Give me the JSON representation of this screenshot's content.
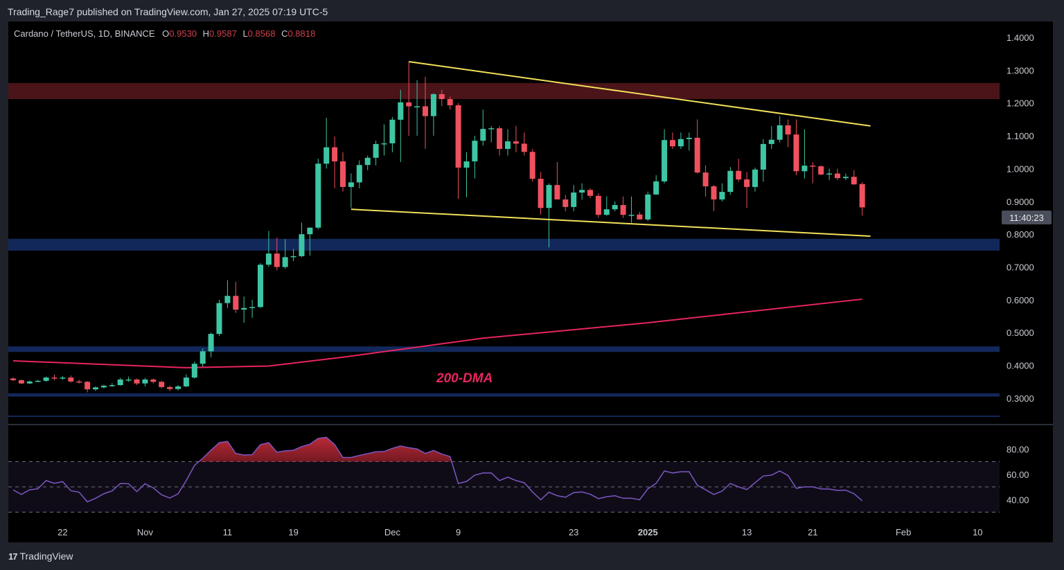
{
  "header": {
    "publisher_line": "Trading_Rage7 published on TradingView.com, Jan 27, 2025 07:19 UTC-5"
  },
  "footer": {
    "brand": "TradingView",
    "logo_icon": "tradingview-logo-icon"
  },
  "colors": {
    "up": "#3ec6a4",
    "down": "#f0515f",
    "trendline": "#f2e15a",
    "ma": "#e8255f",
    "rsi": "#7e57c2",
    "resistance_zone": "#4a1419",
    "support_zone": "#13285a",
    "background": "#000000"
  },
  "chart_data": {
    "type": "candlestick",
    "title": "Cardano / TetherUS, 1D, BINANCE",
    "ohlc": {
      "o_label": "O",
      "o": "0.9530",
      "h_label": "H",
      "h": "0.9587",
      "l_label": "L",
      "l": "0.8568",
      "c_label": "C",
      "c": "0.8818"
    },
    "countdown": "11:40:23",
    "ylim": [
      0.24,
      1.42
    ],
    "y_ticks": [
      {
        "value": 1.4,
        "label": "1.4000"
      },
      {
        "value": 1.3,
        "label": "1.3000"
      },
      {
        "value": 1.2,
        "label": "1.2000"
      },
      {
        "value": 1.1,
        "label": "1.1000"
      },
      {
        "value": 1.0,
        "label": "1.0000"
      },
      {
        "value": 0.9,
        "label": "0.9000"
      },
      {
        "value": 0.8,
        "label": "0.8000"
      },
      {
        "value": 0.7,
        "label": "0.7000"
      },
      {
        "value": 0.6,
        "label": "0.6000"
      },
      {
        "value": 0.5,
        "label": "0.5000"
      },
      {
        "value": 0.4,
        "label": "0.4000"
      },
      {
        "value": 0.3,
        "label": "0.3000"
      }
    ],
    "x_ticks": [
      {
        "date": "2024-10-22",
        "label": "22"
      },
      {
        "date": "2024-11-01",
        "label": "Nov"
      },
      {
        "date": "2024-11-11",
        "label": "11"
      },
      {
        "date": "2024-11-19",
        "label": "19"
      },
      {
        "date": "2024-12-01",
        "label": "Dec"
      },
      {
        "date": "2024-12-09",
        "label": "9"
      },
      {
        "date": "2024-12-23",
        "label": "23"
      },
      {
        "date": "2025-01-01",
        "label": "2025",
        "bold": true
      },
      {
        "date": "2025-01-13",
        "label": "13"
      },
      {
        "date": "2025-01-21",
        "label": "21"
      },
      {
        "date": "2025-02-01",
        "label": "Feb"
      },
      {
        "date": "2025-02-10",
        "label": "10"
      }
    ],
    "candles_columns": [
      "date",
      "open",
      "high",
      "low",
      "close"
    ],
    "candles": [
      [
        "2024-10-16",
        0.36,
        0.364,
        0.352,
        0.355
      ],
      [
        "2024-10-17",
        0.355,
        0.357,
        0.343,
        0.345
      ],
      [
        "2024-10-18",
        0.345,
        0.354,
        0.343,
        0.351
      ],
      [
        "2024-10-19",
        0.351,
        0.356,
        0.349,
        0.353
      ],
      [
        "2024-10-20",
        0.353,
        0.366,
        0.35,
        0.363
      ],
      [
        "2024-10-21",
        0.363,
        0.372,
        0.355,
        0.36
      ],
      [
        "2024-10-22",
        0.36,
        0.368,
        0.356,
        0.363
      ],
      [
        "2024-10-23",
        0.363,
        0.369,
        0.348,
        0.351
      ],
      [
        "2024-10-24",
        0.351,
        0.356,
        0.345,
        0.35
      ],
      [
        "2024-10-25",
        0.35,
        0.352,
        0.318,
        0.327
      ],
      [
        "2024-10-26",
        0.327,
        0.336,
        0.322,
        0.333
      ],
      [
        "2024-10-27",
        0.333,
        0.341,
        0.33,
        0.338
      ],
      [
        "2024-10-28",
        0.338,
        0.346,
        0.334,
        0.34
      ],
      [
        "2024-10-29",
        0.34,
        0.362,
        0.338,
        0.357
      ],
      [
        "2024-10-30",
        0.357,
        0.366,
        0.35,
        0.357
      ],
      [
        "2024-10-31",
        0.357,
        0.36,
        0.34,
        0.345
      ],
      [
        "2024-11-01",
        0.345,
        0.362,
        0.336,
        0.357
      ],
      [
        "2024-11-02",
        0.357,
        0.36,
        0.345,
        0.35
      ],
      [
        "2024-11-03",
        0.35,
        0.353,
        0.33,
        0.334
      ],
      [
        "2024-11-04",
        0.334,
        0.338,
        0.322,
        0.328
      ],
      [
        "2024-11-05",
        0.328,
        0.34,
        0.324,
        0.336
      ],
      [
        "2024-11-06",
        0.336,
        0.373,
        0.334,
        0.363
      ],
      [
        "2024-11-07",
        0.363,
        0.412,
        0.36,
        0.405
      ],
      [
        "2024-11-08",
        0.405,
        0.452,
        0.396,
        0.443
      ],
      [
        "2024-11-09",
        0.443,
        0.5,
        0.425,
        0.496
      ],
      [
        "2024-11-10",
        0.496,
        0.6,
        0.49,
        0.59
      ],
      [
        "2024-11-11",
        0.59,
        0.66,
        0.575,
        0.612
      ],
      [
        "2024-11-12",
        0.612,
        0.655,
        0.56,
        0.57
      ],
      [
        "2024-11-13",
        0.57,
        0.61,
        0.53,
        0.575
      ],
      [
        "2024-11-14",
        0.575,
        0.6,
        0.545,
        0.578
      ],
      [
        "2024-11-15",
        0.578,
        0.712,
        0.575,
        0.707
      ],
      [
        "2024-11-16",
        0.707,
        0.81,
        0.7,
        0.741
      ],
      [
        "2024-11-17",
        0.741,
        0.79,
        0.69,
        0.7
      ],
      [
        "2024-11-18",
        0.7,
        0.785,
        0.695,
        0.73
      ],
      [
        "2024-11-19",
        0.73,
        0.755,
        0.718,
        0.733
      ],
      [
        "2024-11-20",
        0.733,
        0.835,
        0.73,
        0.8
      ],
      [
        "2024-11-21",
        0.8,
        0.82,
        0.735,
        0.82
      ],
      [
        "2024-11-22",
        0.82,
        1.03,
        0.815,
        1.015
      ],
      [
        "2024-11-23",
        1.015,
        1.155,
        1.0,
        1.065
      ],
      [
        "2024-11-24",
        1.065,
        1.098,
        0.94,
        1.022
      ],
      [
        "2024-11-25",
        1.022,
        1.05,
        0.93,
        0.944
      ],
      [
        "2024-11-26",
        0.944,
        0.985,
        0.88,
        0.958
      ],
      [
        "2024-11-27",
        0.958,
        1.025,
        0.94,
        1.011
      ],
      [
        "2024-11-28",
        1.011,
        1.04,
        0.995,
        1.033
      ],
      [
        "2024-11-29",
        1.033,
        1.085,
        1.01,
        1.075
      ],
      [
        "2024-11-30",
        1.075,
        1.135,
        1.04,
        1.077
      ],
      [
        "2024-12-01",
        1.077,
        1.157,
        1.05,
        1.149
      ],
      [
        "2024-12-02",
        1.149,
        1.24,
        1.02,
        1.202
      ],
      [
        "2024-12-03",
        1.202,
        1.326,
        1.1,
        1.19
      ],
      [
        "2024-12-04",
        1.19,
        1.27,
        1.1,
        1.19
      ],
      [
        "2024-12-05",
        1.19,
        1.28,
        1.06,
        1.16
      ],
      [
        "2024-12-06",
        1.16,
        1.23,
        1.1,
        1.227
      ],
      [
        "2024-12-07",
        1.227,
        1.24,
        1.19,
        1.212
      ],
      [
        "2024-12-08",
        1.212,
        1.22,
        1.18,
        1.193
      ],
      [
        "2024-12-09",
        1.193,
        1.2,
        0.908,
        1.003
      ],
      [
        "2024-12-10",
        1.003,
        1.05,
        0.913,
        1.022
      ],
      [
        "2024-12-11",
        1.022,
        1.1,
        0.97,
        1.085
      ],
      [
        "2024-12-12",
        1.085,
        1.18,
        1.07,
        1.121
      ],
      [
        "2024-12-13",
        1.121,
        1.13,
        1.08,
        1.123
      ],
      [
        "2024-12-14",
        1.123,
        1.13,
        1.04,
        1.06
      ],
      [
        "2024-12-15",
        1.06,
        1.12,
        1.04,
        1.083
      ],
      [
        "2024-12-16",
        1.083,
        1.13,
        1.05,
        1.076
      ],
      [
        "2024-12-17",
        1.076,
        1.11,
        1.04,
        1.051
      ],
      [
        "2024-12-18",
        1.051,
        1.06,
        0.96,
        0.969
      ],
      [
        "2024-12-19",
        0.969,
        0.99,
        0.86,
        0.88
      ],
      [
        "2024-12-20",
        0.88,
        0.955,
        0.76,
        0.95
      ],
      [
        "2024-12-21",
        0.95,
        1.02,
        0.91,
        0.906
      ],
      [
        "2024-12-22",
        0.906,
        0.92,
        0.87,
        0.883
      ],
      [
        "2024-12-23",
        0.883,
        0.95,
        0.87,
        0.927
      ],
      [
        "2024-12-24",
        0.927,
        0.955,
        0.905,
        0.935
      ],
      [
        "2024-12-25",
        0.935,
        0.94,
        0.91,
        0.917
      ],
      [
        "2024-12-26",
        0.917,
        0.925,
        0.85,
        0.859
      ],
      [
        "2024-12-27",
        0.859,
        0.915,
        0.856,
        0.876
      ],
      [
        "2024-12-28",
        0.876,
        0.9,
        0.87,
        0.889
      ],
      [
        "2024-12-29",
        0.889,
        0.915,
        0.85,
        0.859
      ],
      [
        "2024-12-30",
        0.859,
        0.915,
        0.835,
        0.859
      ],
      [
        "2024-12-31",
        0.86,
        0.868,
        0.845,
        0.845
      ],
      [
        "2025-01-01",
        0.845,
        0.93,
        0.84,
        0.921
      ],
      [
        "2025-01-02",
        0.921,
        0.98,
        0.92,
        0.961
      ],
      [
        "2025-01-03",
        0.961,
        1.12,
        0.955,
        1.087
      ],
      [
        "2025-01-04",
        1.087,
        1.11,
        1.06,
        1.068
      ],
      [
        "2025-01-05",
        1.068,
        1.11,
        1.06,
        1.09
      ],
      [
        "2025-01-06",
        1.09,
        1.11,
        1.055,
        1.094
      ],
      [
        "2025-01-07",
        1.094,
        1.15,
        0.985,
        0.988
      ],
      [
        "2025-01-08",
        0.988,
        1.01,
        0.915,
        0.946
      ],
      [
        "2025-01-09",
        0.946,
        0.95,
        0.87,
        0.906
      ],
      [
        "2025-01-10",
        0.906,
        0.955,
        0.9,
        0.929
      ],
      [
        "2025-01-11",
        0.929,
        1.005,
        0.92,
        0.993
      ],
      [
        "2025-01-12",
        0.993,
        1.03,
        0.96,
        0.967
      ],
      [
        "2025-01-13",
        0.967,
        0.99,
        0.88,
        0.944
      ],
      [
        "2025-01-14",
        0.944,
        1.003,
        0.93,
        0.997
      ],
      [
        "2025-01-15",
        0.997,
        1.09,
        0.96,
        1.075
      ],
      [
        "2025-01-16",
        1.075,
        1.13,
        1.06,
        1.088
      ],
      [
        "2025-01-17",
        1.088,
        1.16,
        1.08,
        1.132
      ],
      [
        "2025-01-18",
        1.132,
        1.15,
        1.065,
        1.104
      ],
      [
        "2025-01-19",
        1.104,
        1.15,
        0.98,
        0.992
      ],
      [
        "2025-01-20",
        0.992,
        1.12,
        0.97,
        1.009
      ],
      [
        "2025-01-21",
        1.009,
        1.02,
        0.955,
        1.007
      ],
      [
        "2025-01-22",
        1.007,
        1.01,
        0.98,
        0.982
      ],
      [
        "2025-01-23",
        0.982,
        1.0,
        0.965,
        0.985
      ],
      [
        "2025-01-24",
        0.985,
        1.0,
        0.965,
        0.971
      ],
      [
        "2025-01-25",
        0.971,
        0.985,
        0.965,
        0.975
      ],
      [
        "2025-01-26",
        0.975,
        0.995,
        0.95,
        0.952
      ],
      [
        "2025-01-27",
        0.953,
        0.9587,
        0.8568,
        0.8818
      ]
    ],
    "ma200": {
      "label": "200-DMA",
      "points": [
        [
          "2024-10-16",
          0.414
        ],
        [
          "2024-11-06",
          0.393
        ],
        [
          "2024-11-16",
          0.398
        ],
        [
          "2024-11-25",
          0.425
        ],
        [
          "2024-12-12",
          0.483
        ],
        [
          "2025-01-01",
          0.53
        ],
        [
          "2025-01-27",
          0.602
        ]
      ]
    },
    "trendlines": [
      {
        "from": [
          "2024-12-03",
          1.326
        ],
        "to": [
          "2025-01-28",
          1.13
        ]
      },
      {
        "from": [
          "2024-11-26",
          0.876
        ],
        "to": [
          "2025-01-28",
          0.794
        ]
      }
    ],
    "zones": [
      {
        "kind": "resistance",
        "top": 1.261,
        "bottom": 1.212
      },
      {
        "kind": "support",
        "top": 0.786,
        "bottom": 0.75
      },
      {
        "kind": "support",
        "top": 0.458,
        "bottom": 0.441
      },
      {
        "kind": "support",
        "top": 0.315,
        "bottom": 0.305
      }
    ],
    "rsi": {
      "ticks": [
        {
          "value": 80,
          "label": "80.00"
        },
        {
          "value": 60,
          "label": "60.00"
        },
        {
          "value": 40,
          "label": "40.00"
        }
      ],
      "bands": [
        70,
        50,
        30
      ],
      "values": [
        47.6,
        44,
        47.7,
        48.5,
        55,
        52.8,
        54.2,
        47,
        45.8,
        38.2,
        41,
        44.6,
        46.8,
        52.7,
        52.5,
        46.3,
        52.5,
        49.2,
        43.8,
        41.2,
        44.5,
        55,
        67,
        72.6,
        79,
        85,
        86,
        76.5,
        75.2,
        75.5,
        83.5,
        85,
        77.4,
        78.5,
        79,
        81.9,
        83.8,
        88.4,
        89.2,
        83.5,
        73.3,
        73.3,
        74.9,
        76.3,
        77.8,
        78,
        80.5,
        82.4,
        81,
        80,
        76.5,
        78.8,
        76,
        74,
        52.7,
        54.3,
        59.3,
        61,
        61,
        55,
        57.7,
        55,
        53.3,
        46,
        39.8,
        45.8,
        43,
        41.8,
        45.5,
        46,
        44.2,
        40.7,
        42.2,
        43,
        41,
        41,
        39.8,
        48.5,
        52.8,
        62.6,
        61,
        62,
        62,
        51.3,
        47.7,
        44,
        46.7,
        52.7,
        50,
        47.9,
        53.3,
        58.6,
        59.3,
        62.6,
        59,
        48.9,
        50,
        50,
        48.4,
        48.3,
        47.2,
        47.4,
        44.6,
        39
      ]
    }
  }
}
